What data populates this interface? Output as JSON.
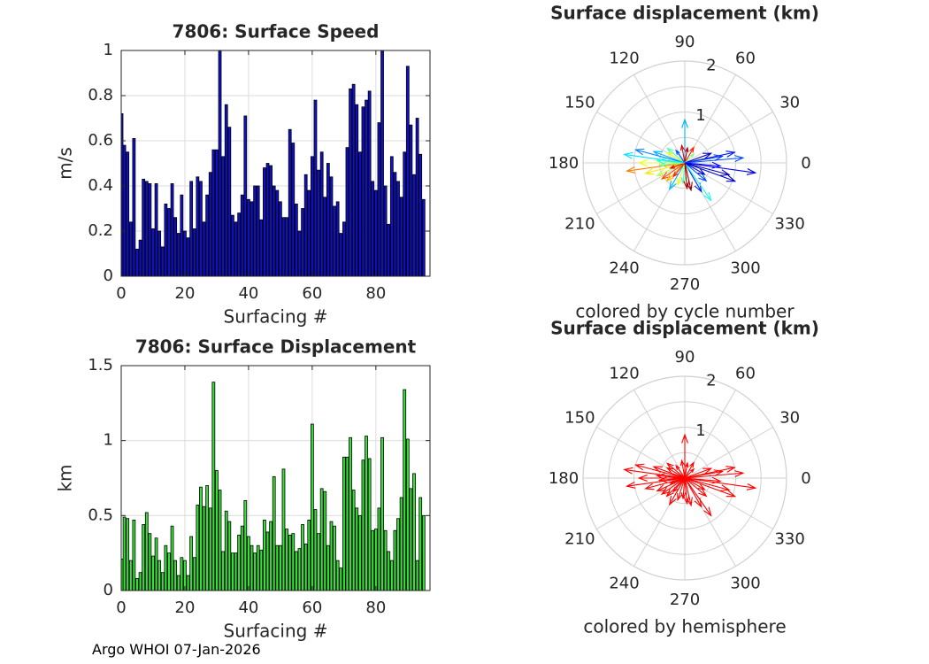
{
  "footer": "Argo WHOI 07-Jan-2026",
  "colors": {
    "speed_bar": "#1010c8",
    "displacement_bar": "#38e038",
    "grid": "#dcdcdc",
    "axis": "#262626",
    "hemisphere_arrow": "#ff0000"
  },
  "chart_data": [
    {
      "id": "speed",
      "type": "bar",
      "title": "7806: Surface Speed",
      "xlabel": "Surfacing #",
      "ylabel": "m/s",
      "xlim": [
        0,
        97
      ],
      "ylim": [
        0,
        1
      ],
      "xticks": [
        0,
        20,
        40,
        60,
        80
      ],
      "yticks": [
        0,
        0.2,
        0.4,
        0.6,
        0.8,
        1
      ],
      "ytick_labels": [
        "0",
        "0.2",
        "0.4",
        "0.6",
        "0.8",
        "1"
      ],
      "x": [
        1,
        2,
        3,
        4,
        5,
        6,
        7,
        8,
        9,
        10,
        11,
        12,
        13,
        14,
        15,
        16,
        17,
        18,
        19,
        20,
        21,
        22,
        23,
        24,
        25,
        26,
        27,
        28,
        29,
        30,
        31,
        32,
        33,
        34,
        35,
        36,
        37,
        38,
        39,
        40,
        41,
        42,
        43,
        44,
        45,
        46,
        47,
        48,
        49,
        50,
        51,
        52,
        53,
        54,
        55,
        56,
        57,
        58,
        59,
        60,
        61,
        62,
        63,
        64,
        65,
        66,
        67,
        68,
        69,
        70,
        71,
        72,
        73,
        74,
        75,
        76,
        77,
        78,
        79,
        80,
        81,
        82,
        83,
        84,
        85,
        86,
        87,
        88,
        89,
        90,
        91,
        92,
        93,
        94,
        95
      ],
      "values": [
        0.58,
        0.55,
        0.24,
        0.61,
        0.12,
        0.16,
        0.43,
        0.42,
        0.41,
        0.21,
        0.41,
        0.2,
        0.13,
        0.32,
        0.3,
        0.41,
        0.26,
        0.19,
        0.36,
        0.2,
        0.17,
        0.42,
        0.21,
        0.44,
        0.42,
        0.24,
        0.36,
        0.46,
        0.56,
        0.56,
        1.0,
        0.53,
        0.76,
        0.66,
        0.27,
        0.24,
        0.28,
        0.36,
        0.71,
        0.34,
        0.33,
        0.4,
        0.4,
        0.25,
        0.48,
        0.5,
        0.49,
        0.4,
        0.38,
        0.33,
        0.26,
        0.26,
        0.65,
        0.59,
        0.32,
        0.2,
        0.3,
        0.45,
        0.38,
        0.53,
        0.78,
        0.47,
        0.55,
        0.35,
        0.5,
        0.44,
        0.31,
        0.33,
        0.19,
        0.24,
        0.57,
        0.83,
        0.85,
        0.76,
        0.55,
        0.75,
        0.78,
        0.82,
        0.42,
        0.38,
        0.68,
        1.0,
        0.4,
        0.23,
        0.53,
        0.46,
        0.42,
        0.35,
        0.55,
        0.93,
        0.67,
        0.45,
        0.7,
        0.54,
        0.34
      ],
      "edge_value_at_zero": 0.72
    },
    {
      "id": "displacement",
      "type": "bar",
      "title": "7806: Surface Displacement",
      "xlabel": "Surfacing #",
      "ylabel": "km",
      "xlim": [
        0,
        97
      ],
      "ylim": [
        0,
        1.5
      ],
      "xticks": [
        0,
        20,
        40,
        60,
        80
      ],
      "yticks": [
        0,
        0.5,
        1,
        1.5
      ],
      "ytick_labels": [
        "0",
        "0.5",
        "1",
        "1.5"
      ],
      "x": [
        1,
        2,
        3,
        4,
        5,
        6,
        7,
        8,
        9,
        10,
        11,
        12,
        13,
        14,
        15,
        16,
        17,
        18,
        19,
        20,
        21,
        22,
        23,
        24,
        25,
        26,
        27,
        28,
        29,
        30,
        31,
        32,
        33,
        34,
        35,
        36,
        37,
        38,
        39,
        40,
        41,
        42,
        43,
        44,
        45,
        46,
        47,
        48,
        49,
        50,
        51,
        52,
        53,
        54,
        55,
        56,
        57,
        58,
        59,
        60,
        61,
        62,
        63,
        64,
        65,
        66,
        67,
        68,
        69,
        70,
        71,
        72,
        73,
        74,
        75,
        76,
        77,
        78,
        79,
        80,
        81,
        82,
        83,
        84,
        85,
        86,
        87,
        88,
        89,
        90,
        91,
        92,
        93,
        94,
        95
      ],
      "values": [
        0.49,
        0.48,
        0.2,
        0.47,
        0.08,
        0.12,
        0.44,
        0.52,
        0.38,
        0.23,
        0.35,
        0.2,
        0.12,
        0.3,
        0.25,
        0.43,
        0.2,
        0.1,
        0.22,
        0.2,
        0.1,
        0.36,
        0.22,
        0.57,
        0.69,
        0.56,
        0.7,
        0.55,
        1.39,
        0.8,
        0.67,
        0.26,
        0.53,
        0.46,
        0.25,
        0.25,
        0.37,
        0.43,
        0.6,
        0.36,
        0.3,
        0.25,
        0.3,
        0.27,
        0.47,
        0.39,
        0.46,
        0.76,
        0.3,
        0.3,
        0.81,
        0.41,
        0.37,
        0.38,
        0.26,
        0.28,
        0.44,
        0.31,
        0.47,
        1.11,
        0.54,
        0.38,
        0.68,
        0.66,
        0.3,
        0.46,
        0.43,
        0.2,
        0.15,
        0.89,
        0.89,
        1.02,
        0.67,
        0.55,
        0.5,
        0.87,
        1.03,
        0.88,
        0.4,
        0.41,
        0.55,
        1.02,
        0.4,
        0.26,
        0.2,
        0.4,
        0.48,
        0.62,
        1.34,
        1.01,
        0.68,
        0.78,
        0.2,
        0.62,
        0.5
      ],
      "edge_value_at_zero": 0.21
    },
    {
      "id": "polar_cycle",
      "type": "scatter",
      "subtype": "compass",
      "title": "Surface displacement (km)",
      "caption": "colored by cycle number",
      "rlim": [
        0,
        2
      ],
      "r_labels": [
        "1",
        "2"
      ],
      "angle_labels": [
        "0",
        "30",
        "60",
        "90",
        "120",
        "150",
        "180",
        "210",
        "240",
        "270",
        "300",
        "330"
      ],
      "vectors": [
        {
          "angle": 5,
          "r": 1.15,
          "cycle": 0.2
        },
        {
          "angle": 352,
          "r": 1.4,
          "cycle": 0.1
        },
        {
          "angle": 12,
          "r": 1.0,
          "cycle": 0.15
        },
        {
          "angle": 345,
          "r": 0.9,
          "cycle": 0.05
        },
        {
          "angle": 90,
          "r": 0.85,
          "cycle": 0.3
        },
        {
          "angle": 100,
          "r": 0.35,
          "cycle": 0.9
        },
        {
          "angle": 80,
          "r": 0.3,
          "cycle": 0.95
        },
        {
          "angle": 165,
          "r": 1.0,
          "cycle": 0.25
        },
        {
          "angle": 172,
          "r": 1.2,
          "cycle": 0.35
        },
        {
          "angle": 180,
          "r": 0.9,
          "cycle": 0.6
        },
        {
          "angle": 188,
          "r": 1.15,
          "cycle": 0.75
        },
        {
          "angle": 195,
          "r": 0.8,
          "cycle": 0.65
        },
        {
          "angle": 205,
          "r": 0.6,
          "cycle": 0.55
        },
        {
          "angle": 215,
          "r": 0.55,
          "cycle": 0.8
        },
        {
          "angle": 225,
          "r": 0.5,
          "cycle": 0.7
        },
        {
          "angle": 240,
          "r": 0.6,
          "cycle": 0.3
        },
        {
          "angle": 252,
          "r": 0.45,
          "cycle": 0.6
        },
        {
          "angle": 265,
          "r": 0.4,
          "cycle": 0.45
        },
        {
          "angle": 275,
          "r": 0.5,
          "cycle": 0.95
        },
        {
          "angle": 300,
          "r": 0.65,
          "cycle": 0.15
        },
        {
          "angle": 305,
          "r": 0.9,
          "cycle": 0.4
        },
        {
          "angle": 320,
          "r": 0.55,
          "cycle": 0.2
        },
        {
          "angle": 330,
          "r": 0.45,
          "cycle": 0.1
        },
        {
          "angle": 140,
          "r": 0.45,
          "cycle": 0.45
        },
        {
          "angle": 150,
          "r": 0.4,
          "cycle": 0.6
        },
        {
          "angle": 125,
          "r": 0.3,
          "cycle": 0.2
        },
        {
          "angle": 60,
          "r": 0.35,
          "cycle": 0.85
        },
        {
          "angle": 45,
          "r": 0.25,
          "cycle": 0.5
        },
        {
          "angle": 20,
          "r": 0.55,
          "cycle": 0.05
        },
        {
          "angle": 200,
          "r": 0.3,
          "cycle": 0.9
        },
        {
          "angle": 230,
          "r": 0.35,
          "cycle": 0.85
        },
        {
          "angle": 185,
          "r": 0.5,
          "cycle": 0.5
        },
        {
          "angle": 175,
          "r": 0.55,
          "cycle": 0.4
        },
        {
          "angle": 160,
          "r": 0.65,
          "cycle": 0.3
        },
        {
          "angle": 355,
          "r": 0.7,
          "cycle": 0.12
        },
        {
          "angle": 340,
          "r": 1.05,
          "cycle": 0.08
        },
        {
          "angle": 10,
          "r": 0.75,
          "cycle": 0.18
        },
        {
          "angle": 283,
          "r": 0.55,
          "cycle": 0.98
        }
      ]
    },
    {
      "id": "polar_hemisphere",
      "type": "scatter",
      "subtype": "compass",
      "title": "Surface displacement (km)",
      "caption": "colored by hemisphere",
      "rlim": [
        0,
        2
      ],
      "r_labels": [
        "1",
        "2"
      ],
      "angle_labels": [
        "0",
        "30",
        "60",
        "90",
        "120",
        "150",
        "180",
        "210",
        "240",
        "270",
        "300",
        "330"
      ],
      "vectors": [
        {
          "angle": 5,
          "r": 1.15
        },
        {
          "angle": 352,
          "r": 1.4
        },
        {
          "angle": 12,
          "r": 1.0
        },
        {
          "angle": 345,
          "r": 0.9
        },
        {
          "angle": 90,
          "r": 0.85
        },
        {
          "angle": 100,
          "r": 0.35
        },
        {
          "angle": 80,
          "r": 0.3
        },
        {
          "angle": 165,
          "r": 1.0
        },
        {
          "angle": 172,
          "r": 1.2
        },
        {
          "angle": 180,
          "r": 0.9
        },
        {
          "angle": 188,
          "r": 1.15
        },
        {
          "angle": 195,
          "r": 0.8
        },
        {
          "angle": 205,
          "r": 0.6
        },
        {
          "angle": 215,
          "r": 0.55
        },
        {
          "angle": 225,
          "r": 0.5
        },
        {
          "angle": 240,
          "r": 0.6
        },
        {
          "angle": 252,
          "r": 0.45
        },
        {
          "angle": 265,
          "r": 0.4
        },
        {
          "angle": 275,
          "r": 0.5
        },
        {
          "angle": 300,
          "r": 0.65
        },
        {
          "angle": 305,
          "r": 0.9
        },
        {
          "angle": 320,
          "r": 0.55
        },
        {
          "angle": 330,
          "r": 0.45
        },
        {
          "angle": 140,
          "r": 0.45
        },
        {
          "angle": 150,
          "r": 0.4
        },
        {
          "angle": 125,
          "r": 0.3
        },
        {
          "angle": 60,
          "r": 0.35
        },
        {
          "angle": 45,
          "r": 0.25
        },
        {
          "angle": 20,
          "r": 0.55
        },
        {
          "angle": 200,
          "r": 0.3
        },
        {
          "angle": 230,
          "r": 0.35
        },
        {
          "angle": 185,
          "r": 0.5
        },
        {
          "angle": 175,
          "r": 0.55
        },
        {
          "angle": 160,
          "r": 0.65
        },
        {
          "angle": 355,
          "r": 0.7
        },
        {
          "angle": 340,
          "r": 1.05
        },
        {
          "angle": 10,
          "r": 0.75
        },
        {
          "angle": 283,
          "r": 0.55
        }
      ]
    }
  ]
}
